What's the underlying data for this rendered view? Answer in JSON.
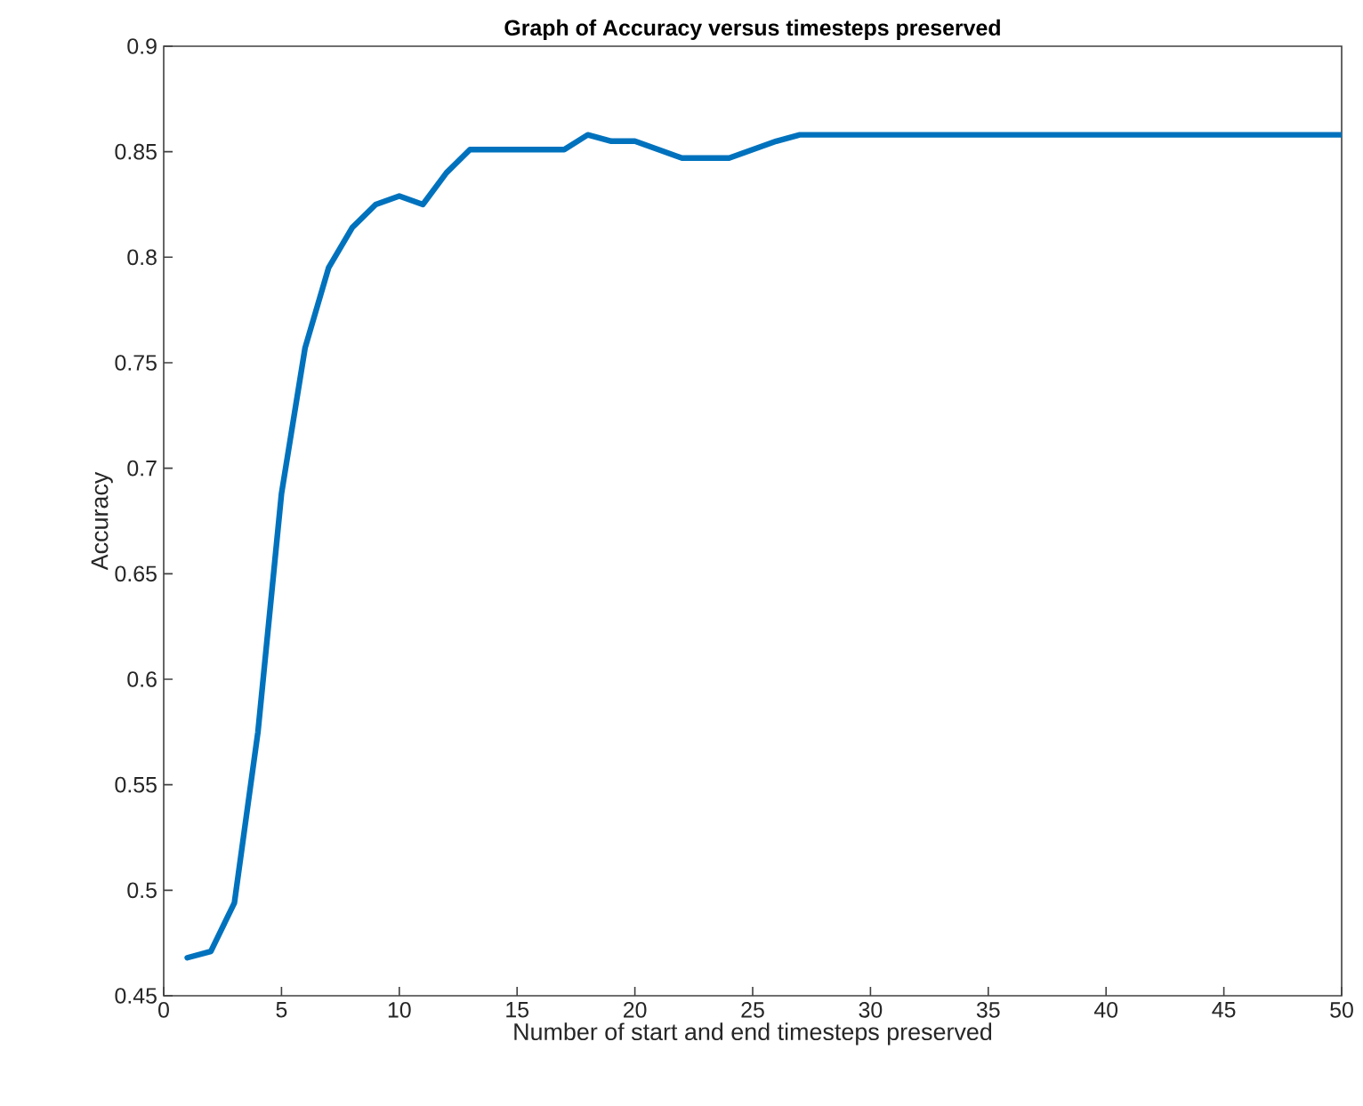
{
  "chart_data": {
    "type": "line",
    "title": "Graph of Accuracy versus timesteps preserved",
    "xlabel": "Number of start and end timesteps preserved",
    "ylabel": "Accuracy",
    "x": [
      1,
      2,
      3,
      4,
      5,
      6,
      7,
      8,
      9,
      10,
      11,
      12,
      13,
      14,
      15,
      16,
      17,
      18,
      19,
      20,
      21,
      22,
      23,
      24,
      25,
      26,
      27,
      28,
      29,
      30,
      31,
      32,
      33,
      34,
      35,
      36,
      37,
      38,
      39,
      40,
      41,
      42,
      43,
      44,
      45,
      46,
      47,
      48,
      49,
      50
    ],
    "series": [
      {
        "color": "#0072bd",
        "values": [
          0.468,
          0.471,
          0.494,
          0.575,
          0.688,
          0.757,
          0.795,
          0.814,
          0.825,
          0.829,
          0.825,
          0.84,
          0.851,
          0.851,
          0.851,
          0.851,
          0.851,
          0.858,
          0.855,
          0.855,
          0.851,
          0.847,
          0.847,
          0.847,
          0.851,
          0.855,
          0.858,
          0.858,
          0.858,
          0.858,
          0.858,
          0.858,
          0.858,
          0.858,
          0.858,
          0.858,
          0.858,
          0.858,
          0.858,
          0.858,
          0.858,
          0.858,
          0.858,
          0.858,
          0.858,
          0.858,
          0.858,
          0.858,
          0.858,
          0.858
        ]
      }
    ],
    "xlim": [
      0,
      50
    ],
    "ylim": [
      0.45,
      0.9
    ],
    "xticks": [
      0,
      5,
      10,
      15,
      20,
      25,
      30,
      35,
      40,
      45,
      50
    ],
    "yticks": [
      0.45,
      0.5,
      0.55,
      0.6,
      0.65,
      0.7,
      0.75,
      0.8,
      0.85,
      0.9
    ],
    "grid": false,
    "marker": "none",
    "line_style": "solid"
  }
}
